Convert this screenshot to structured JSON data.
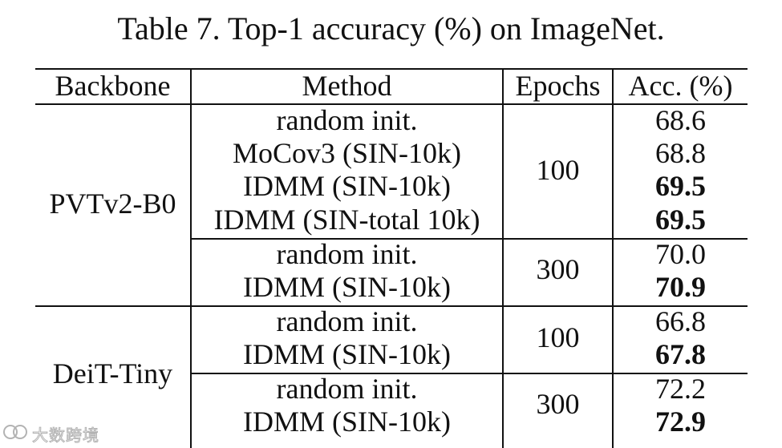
{
  "caption": "Table 7. Top-1 accuracy (%) on ImageNet.",
  "headers": {
    "backbone": "Backbone",
    "method": "Method",
    "epochs": "Epochs",
    "acc": "Acc. (%)"
  },
  "groups": [
    {
      "backbone": "PVTv2-B0",
      "blocks": [
        {
          "epochs": "100",
          "rows": [
            {
              "method": "random init.",
              "acc": "68.6",
              "bold": false
            },
            {
              "method": "MoCov3 (SIN-10k)",
              "acc": "68.8",
              "bold": false
            },
            {
              "method": "IDMM (SIN-10k)",
              "acc": "69.5",
              "bold": true
            },
            {
              "method": "IDMM (SIN-total 10k)",
              "acc": "69.5",
              "bold": true
            }
          ]
        },
        {
          "epochs": "300",
          "rows": [
            {
              "method": "random init.",
              "acc": "70.0",
              "bold": false
            },
            {
              "method": "IDMM (SIN-10k)",
              "acc": "70.9",
              "bold": true
            }
          ]
        }
      ]
    },
    {
      "backbone": "DeiT-Tiny",
      "blocks": [
        {
          "epochs": "100",
          "rows": [
            {
              "method": "random init.",
              "acc": "66.8",
              "bold": false
            },
            {
              "method": "IDMM (SIN-10k)",
              "acc": "67.8",
              "bold": true
            }
          ]
        },
        {
          "epochs": "300",
          "rows": [
            {
              "method": "random init.",
              "acc": "72.2",
              "bold": false
            },
            {
              "method": "IDMM (SIN-10k)",
              "acc": "72.9",
              "bold": true
            }
          ]
        }
      ]
    }
  ],
  "watermark": {
    "text": "大数跨境",
    "icon": "brand-logo-icon"
  }
}
